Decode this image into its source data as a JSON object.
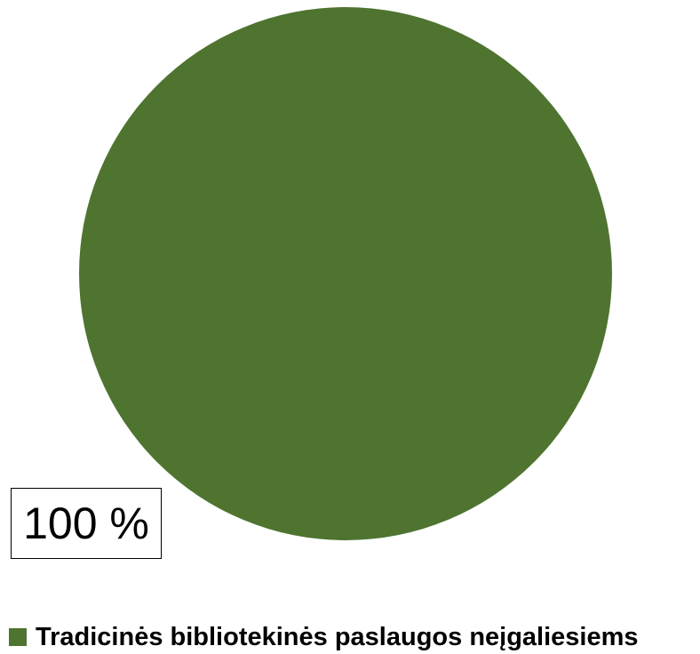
{
  "chart_data": {
    "type": "pie",
    "title": "",
    "slices": [
      {
        "name": "Tradicinės bibliotekinės paslaugos neįgaliesiems",
        "value": 100,
        "label": "100 %",
        "color": "#4E7430"
      }
    ],
    "legend_position": "bottom"
  },
  "legend": {
    "items": [
      {
        "label": "Tradicinės bibliotekinės paslaugos neįgaliesiems",
        "color": "#4E7430"
      }
    ]
  }
}
